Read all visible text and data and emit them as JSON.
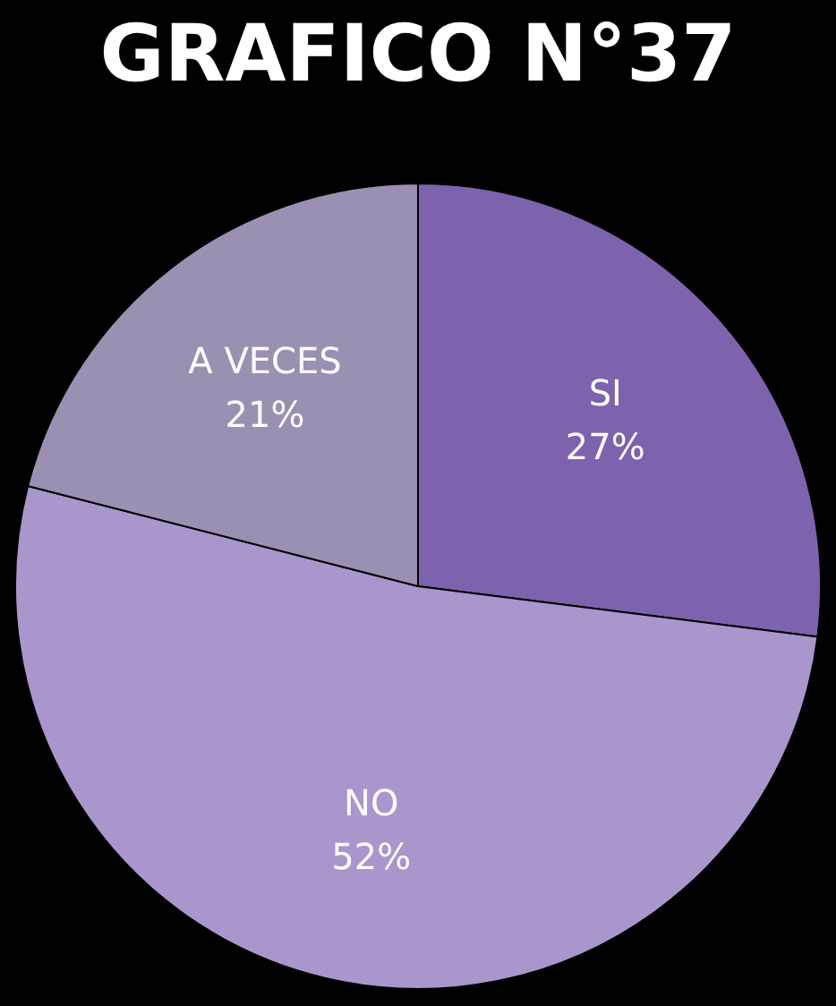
{
  "chart_data": {
    "type": "pie",
    "title": "GRAFICO N°37",
    "categories": [
      "SI",
      "NO",
      "A VECES"
    ],
    "values": [
      27,
      52,
      21
    ],
    "value_labels": [
      "27%",
      "52%",
      "21%"
    ],
    "colors": [
      "#7d62ae",
      "#a896cc",
      "#9b90b2"
    ]
  }
}
